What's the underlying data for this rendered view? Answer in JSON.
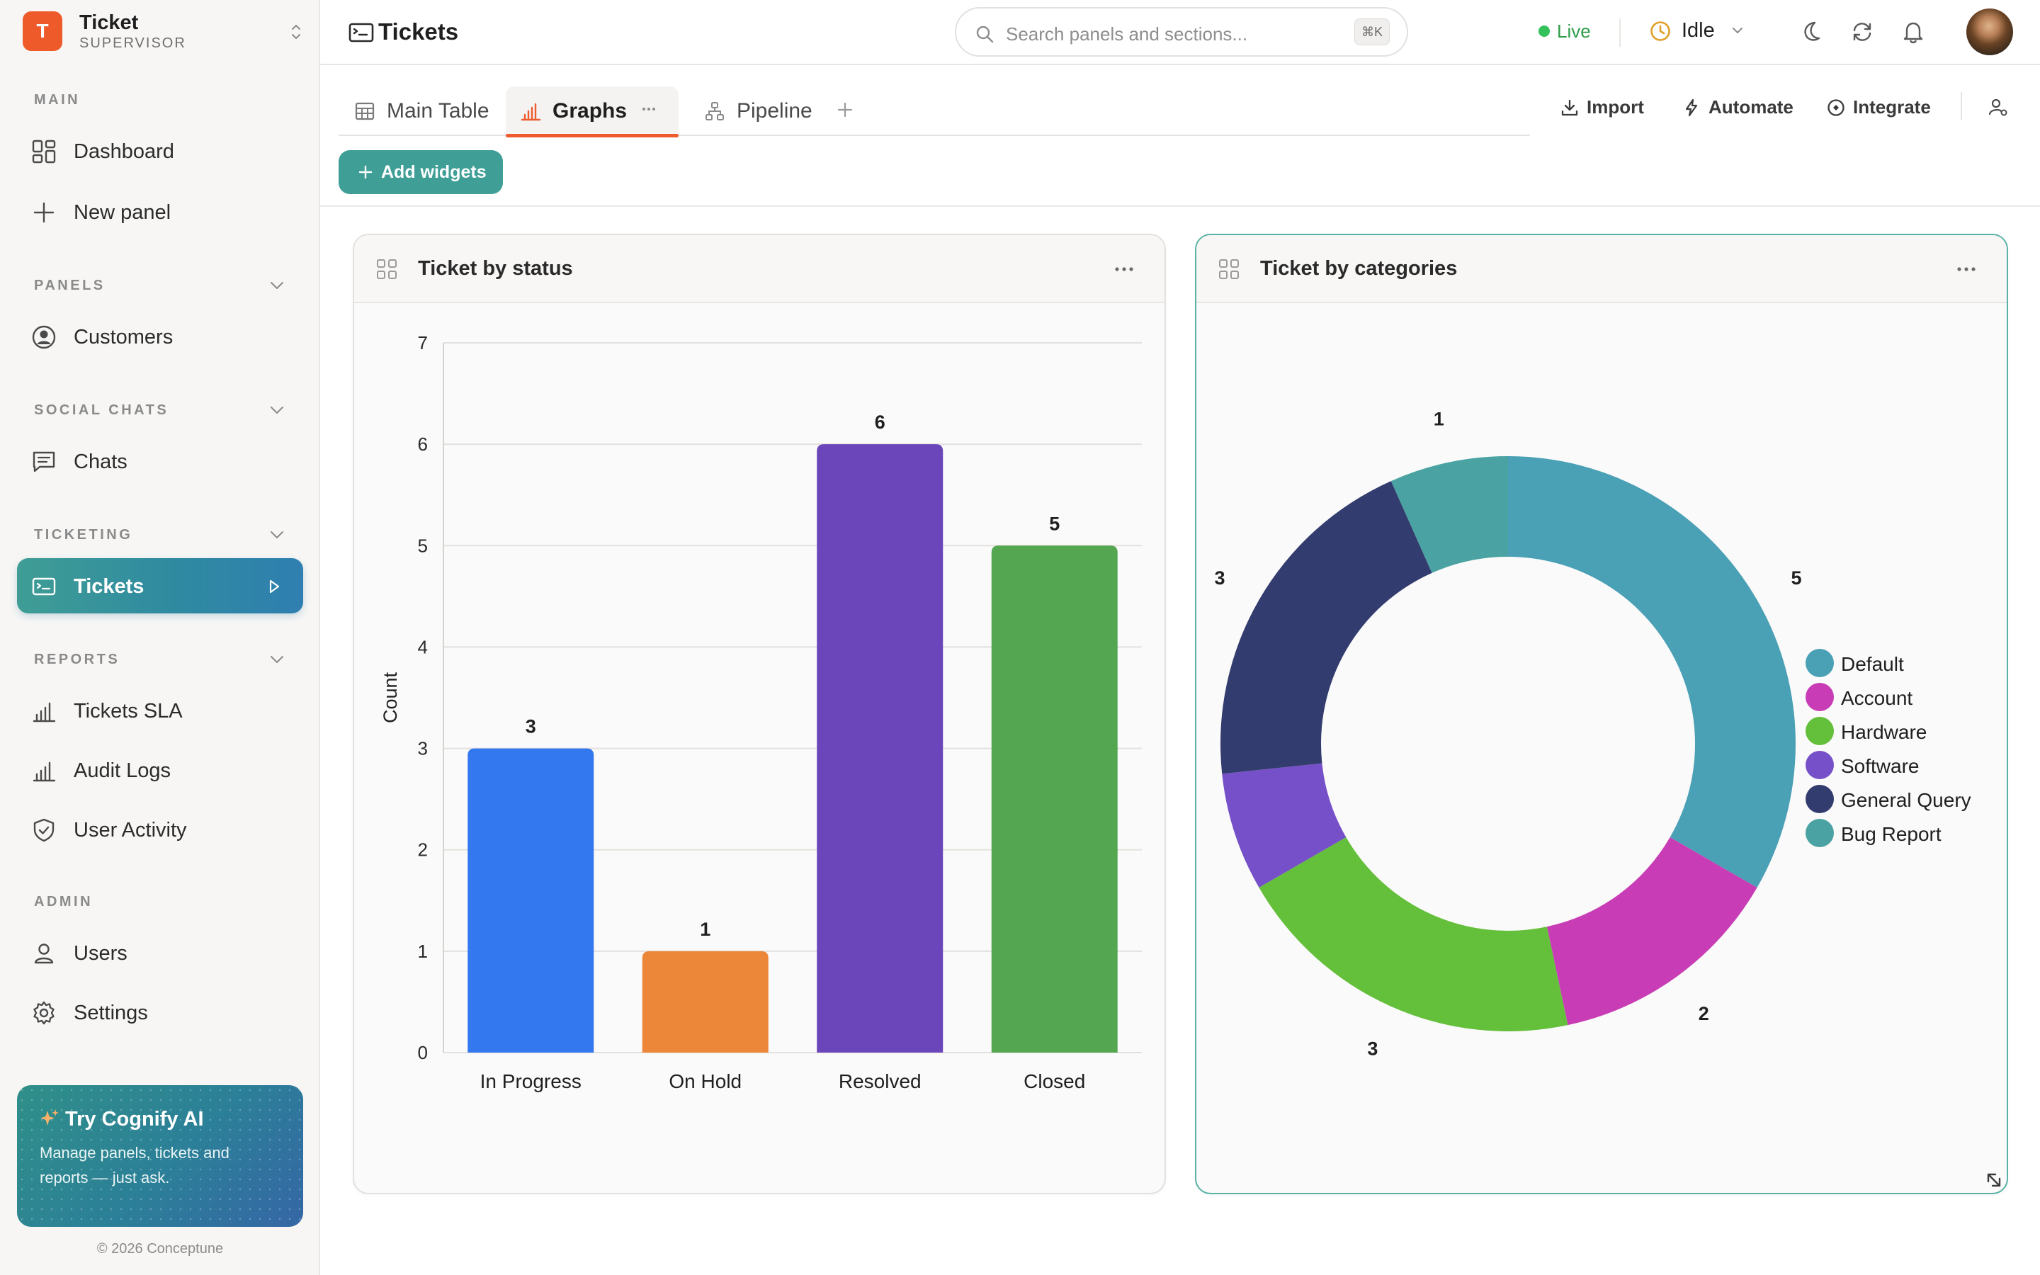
{
  "brand": {
    "logo_letter": "T",
    "name": "Ticket",
    "role": "SUPERVISOR"
  },
  "sidebar": {
    "sections": [
      {
        "label": "MAIN"
      },
      {
        "label": "PANELS"
      },
      {
        "label": "SOCIAL CHATS"
      },
      {
        "label": "TICKETING"
      },
      {
        "label": "REPORTS"
      },
      {
        "label": "ADMIN"
      }
    ],
    "items": [
      {
        "label": "Dashboard",
        "icon": "grid-icon"
      },
      {
        "label": "New panel",
        "icon": "plus-icon"
      },
      {
        "label": "Customers",
        "icon": "user-circle-icon"
      },
      {
        "label": "Chats",
        "icon": "chat-icon"
      },
      {
        "label": "Tickets",
        "icon": "ticket-icon",
        "active": true
      },
      {
        "label": "Tickets SLA",
        "icon": "bar-chart-icon"
      },
      {
        "label": "Audit Logs",
        "icon": "bar-chart-icon"
      },
      {
        "label": "User Activity",
        "icon": "shield-icon"
      },
      {
        "label": "Users",
        "icon": "user-icon"
      },
      {
        "label": "Settings",
        "icon": "gear-icon"
      }
    ],
    "promo": {
      "title": "Try Cognify AI",
      "text": "Manage panels, tickets and reports — just ask."
    },
    "copyright": "© 2026 Conceptune"
  },
  "topbar": {
    "title": "Tickets",
    "search_placeholder": "Search panels and sections...",
    "search_shortcut": "⌘K",
    "live_label": "Live",
    "status_label": "Idle"
  },
  "tabs": [
    {
      "label": "Main Table",
      "icon": "table-icon"
    },
    {
      "label": "Graphs",
      "icon": "bar-chart-icon",
      "active": true
    },
    {
      "label": "Pipeline",
      "icon": "pipeline-icon"
    }
  ],
  "actions": {
    "import": "Import",
    "automate": "Automate",
    "integrate": "Integrate",
    "add_widgets": "Add widgets"
  },
  "colors": {
    "accent": "#ee5b2e",
    "teal": "#3f9f97",
    "live": "#34c05a"
  },
  "widgets": {
    "status": {
      "title": "Ticket by status"
    },
    "categories": {
      "title": "Ticket by categories"
    }
  },
  "chart_data": [
    {
      "type": "bar",
      "title": "Ticket by status",
      "categories": [
        "In Progress",
        "On Hold",
        "Resolved",
        "Closed"
      ],
      "values": [
        3,
        1,
        6,
        5
      ],
      "colors": [
        "#3478f0",
        "#ec8638",
        "#6b45ba",
        "#55a651"
      ],
      "ylabel": "Count",
      "xlabel": "",
      "ylim": [
        0,
        7
      ],
      "yticks": [
        0,
        1,
        2,
        3,
        4,
        5,
        6,
        7
      ],
      "grid": true,
      "data_labels": true
    },
    {
      "type": "pie",
      "donut": true,
      "title": "Ticket by categories",
      "labels": [
        "Default",
        "Account",
        "Hardware",
        "Software",
        "General Query",
        "Bug Report"
      ],
      "values": [
        5,
        2,
        3,
        1,
        3,
        1
      ],
      "colors": [
        "#4aa0b5",
        "#c83db5",
        "#64bf3a",
        "#7650c8",
        "#333c6e",
        "#4aa3a2"
      ],
      "legend_position": "right",
      "data_labels": true
    }
  ]
}
